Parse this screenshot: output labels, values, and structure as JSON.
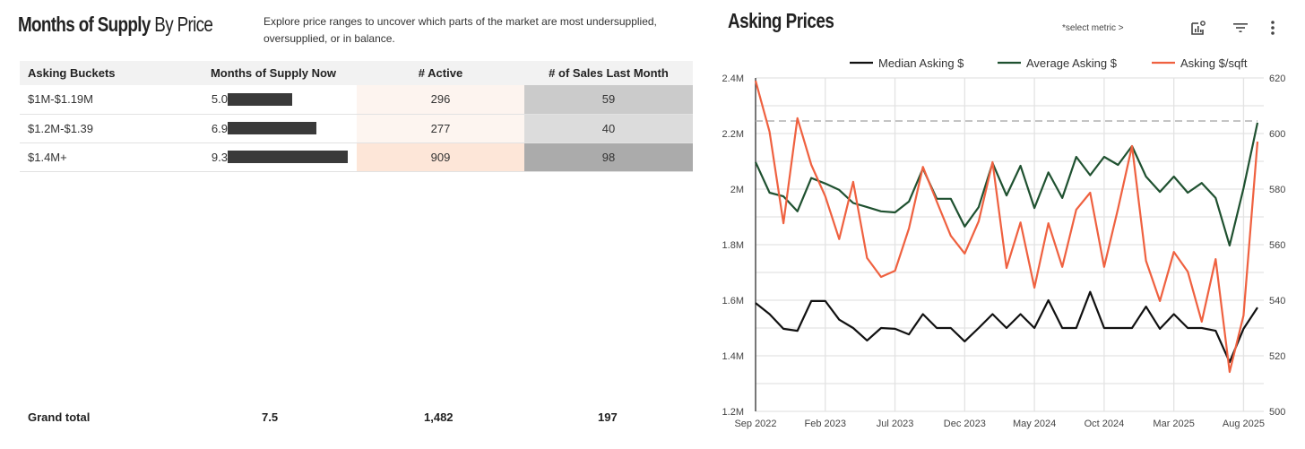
{
  "supply": {
    "title_bold": "Months of Supply",
    "title_light": " By Price",
    "description": "Explore price ranges to uncover which parts of the market are most undersupplied, oversupplied, or in balance.",
    "columns": [
      "Asking Buckets",
      "Months of Supply Now",
      "# Active",
      "# of Sales Last Month"
    ],
    "rows": [
      {
        "bucket": "$1M-$1.19M",
        "mos": "5.0",
        "mos_value": 5.0,
        "active": "296",
        "sales": "59",
        "active_bg": "#fdf4ef",
        "sales_bg": "#cbcbcb"
      },
      {
        "bucket": "$1.2M-$1.39",
        "mos": "6.9",
        "mos_value": 6.9,
        "active": "277",
        "sales": "40",
        "active_bg": "#fdf5f0",
        "sales_bg": "#dcdcdc"
      },
      {
        "bucket": "$1.4M+",
        "mos": "9.3",
        "mos_value": 9.3,
        "active": "909",
        "sales": "98",
        "active_bg": "#fde6d8",
        "sales_bg": "#ababab"
      }
    ],
    "mos_max": 9.3,
    "grand_total": {
      "label": "Grand total",
      "mos": "7.5",
      "active": "1,482",
      "sales": "197"
    }
  },
  "asking": {
    "title": "Asking Prices",
    "select_metric": "*select metric >",
    "icons": [
      "chart-settings-icon",
      "filter-icon",
      "more-vert-icon"
    ]
  },
  "chart_data": {
    "type": "line",
    "title": "Asking Prices",
    "x": [
      "Sep 2022",
      "Oct 2022",
      "Nov 2022",
      "Dec 2022",
      "Jan 2023",
      "Feb 2023",
      "Mar 2023",
      "Apr 2023",
      "May 2023",
      "Jun 2023",
      "Jul 2023",
      "Aug 2023",
      "Sep 2023",
      "Oct 2023",
      "Nov 2023",
      "Dec 2023",
      "Jan 2024",
      "Feb 2024",
      "Mar 2024",
      "Apr 2024",
      "May 2024",
      "Jun 2024",
      "Jul 2024",
      "Aug 2024",
      "Sep 2024",
      "Oct 2024",
      "Nov 2024",
      "Dec 2024",
      "Jan 2025",
      "Feb 2025",
      "Mar 2025",
      "Apr 2025",
      "May 2025",
      "Jun 2025",
      "Jul 2025",
      "Aug 2025",
      "Sep 2025"
    ],
    "xticks": [
      "Sep 2022",
      "Feb 2023",
      "Jul 2023",
      "Dec 2023",
      "May 2024",
      "Oct 2024",
      "Mar 2025",
      "Aug 2025"
    ],
    "series": [
      {
        "name": "Median Asking $",
        "axis": "left",
        "color": "#111111",
        "values": [
          1.59,
          1.55,
          1.497,
          1.49,
          1.597,
          1.597,
          1.53,
          1.5,
          1.455,
          1.5,
          1.497,
          1.477,
          1.55,
          1.5,
          1.5,
          1.452,
          1.5,
          1.55,
          1.5,
          1.55,
          1.5,
          1.6,
          1.5,
          1.5,
          1.63,
          1.5,
          1.5,
          1.5,
          1.577,
          1.497,
          1.55,
          1.5,
          1.5,
          1.49,
          1.377,
          1.497,
          1.574
        ]
      },
      {
        "name": "Average Asking $",
        "axis": "left",
        "color": "#1f5130",
        "values": [
          2.097,
          1.987,
          1.974,
          1.92,
          2.04,
          2.02,
          1.997,
          1.95,
          1.935,
          1.92,
          1.916,
          1.955,
          2.074,
          1.965,
          1.965,
          1.865,
          1.935,
          2.094,
          1.977,
          2.084,
          1.932,
          2.06,
          1.968,
          2.116,
          2.05,
          2.116,
          2.087,
          2.155,
          2.045,
          1.99,
          2.045,
          1.987,
          2.022,
          1.968,
          1.797,
          2.003,
          2.239
        ]
      },
      {
        "name": "Asking $/sqft",
        "axis": "right",
        "color": "#ef6140",
        "values": [
          619,
          600.6,
          567.7,
          605.5,
          588.7,
          577.4,
          562,
          582.6,
          555.2,
          548.4,
          550.6,
          565.8,
          588,
          575.5,
          563.2,
          556.8,
          568.4,
          589.7,
          551.6,
          568,
          544.5,
          567.7,
          552,
          572.6,
          578.7,
          552,
          573,
          595.5,
          554.2,
          539.7,
          557.4,
          550.3,
          532.3,
          554.8,
          514.2,
          534.5,
          597.1
        ]
      }
    ],
    "reference_line": {
      "axis": "left",
      "value": 2.245,
      "style": "dashed",
      "color": "#b0b0b0"
    },
    "left_axis": {
      "ylim": [
        1.2,
        2.4
      ],
      "ticks": [
        1.2,
        1.4,
        1.6,
        1.8,
        2.0,
        2.2,
        2.4
      ],
      "tick_labels": [
        "1.2M",
        "1.4M",
        "1.6M",
        "1.8M",
        "2M",
        "2.2M",
        "2.4M"
      ],
      "unit": "M"
    },
    "right_axis": {
      "ylim": [
        500,
        620
      ],
      "ticks": [
        500,
        520,
        540,
        560,
        580,
        600,
        620
      ],
      "tick_labels": [
        "500",
        "520",
        "540",
        "560",
        "580",
        "600",
        "620"
      ]
    },
    "grid": true,
    "legend": "top-right",
    "xlabel": "",
    "ylabel": ""
  }
}
